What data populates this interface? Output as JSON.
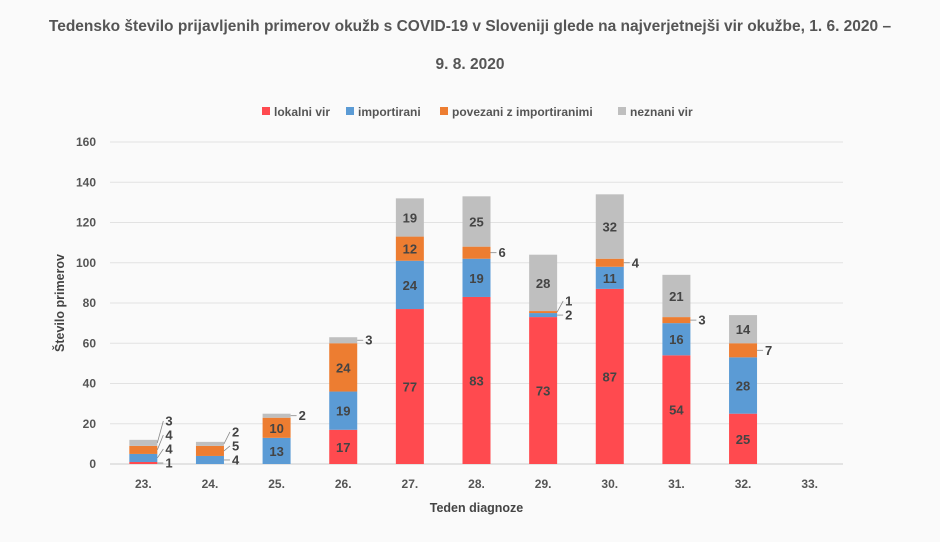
{
  "chart_data": {
    "type": "bar",
    "stacked": true,
    "title_line1": "Tedensko število prijavljenih primerov okužb s COVID-19 v Sloveniji glede na najverjetnejši vir okužbe, 1. 6. 2020 –",
    "title_line2": "9. 8. 2020",
    "xlabel": "Teden diagnoze",
    "ylabel": "Število primerov",
    "ylim": [
      0,
      160
    ],
    "yticks": [
      0,
      20,
      40,
      60,
      80,
      100,
      120,
      140,
      160
    ],
    "grid": true,
    "legend_position": "top",
    "categories": [
      "23.",
      "24.",
      "25.",
      "26.",
      "27.",
      "28.",
      "29.",
      "30.",
      "31.",
      "32.",
      "33."
    ],
    "series": [
      {
        "name": "lokalni vir",
        "color": "#ff4a4f",
        "values": [
          1,
          0,
          0,
          17,
          77,
          83,
          73,
          87,
          54,
          25,
          0
        ]
      },
      {
        "name": "importirani",
        "color": "#5b9bd5",
        "values": [
          4,
          4,
          13,
          19,
          24,
          19,
          2,
          11,
          16,
          28,
          0
        ]
      },
      {
        "name": "povezani z importiranimi",
        "color": "#ed7d31",
        "values": [
          4,
          5,
          10,
          24,
          12,
          6,
          1,
          4,
          3,
          7,
          0
        ]
      },
      {
        "name": "neznani vir",
        "color": "#bfbfbf",
        "values": [
          3,
          2,
          2,
          3,
          19,
          25,
          28,
          32,
          21,
          14,
          0
        ]
      }
    ]
  }
}
